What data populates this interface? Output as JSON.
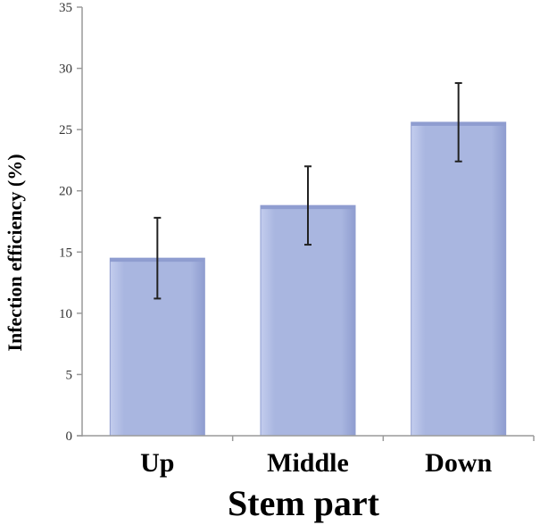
{
  "chart_data": {
    "type": "bar",
    "categories": [
      "Up",
      "Middle",
      "Down"
    ],
    "values": [
      14.5,
      18.8,
      25.6
    ],
    "errors": [
      3.3,
      3.2,
      3.2
    ],
    "xlabel": "Stem part",
    "ylabel": "Infection efficiency (%)",
    "ylim": [
      0,
      35
    ],
    "yticks": [
      0,
      5,
      10,
      15,
      20,
      25,
      30,
      35
    ],
    "grid": false,
    "legend": "none",
    "colors": {
      "bar_fill": "#a9b6e0",
      "bar_edge": "#8f9dd0",
      "bar_highlight": "#c3cdee",
      "axis": "#9a9a9a",
      "error_bar": "#222222"
    }
  }
}
